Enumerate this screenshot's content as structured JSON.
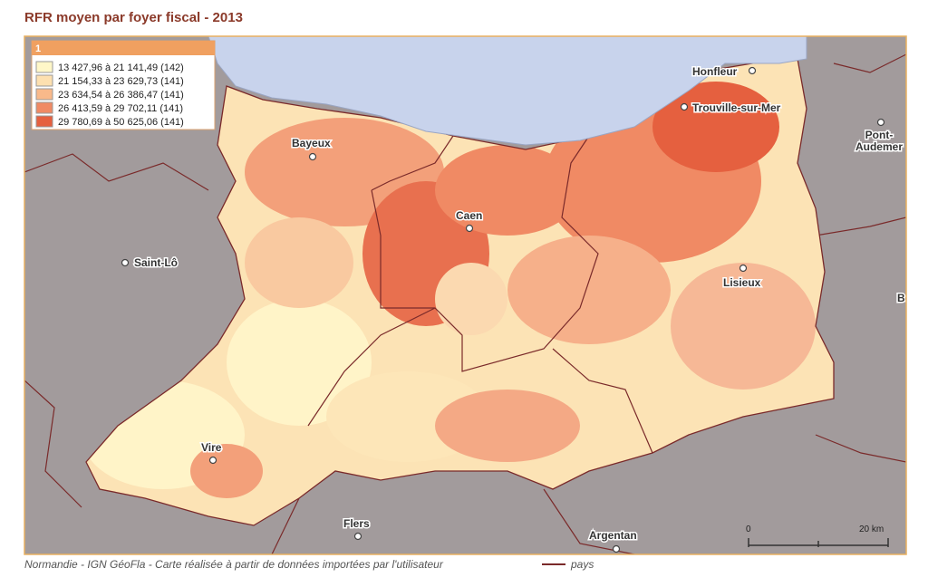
{
  "header": {
    "title": "RFR moyen par foyer fiscal - 2013"
  },
  "legend": {
    "title": "1",
    "items": [
      "13 427,96 à 21 141,49 (142)",
      "21 154,33 à 23 629,73 (141)",
      "23 634,54 à 26 386,47 (141)",
      "26 413,59 à 29 702,11 (141)",
      "29 780,69 à 50 625,06 (141)"
    ]
  },
  "cities": [
    "Honfleur",
    "Trouville-sur-Mer",
    "Pont-\nAudemer",
    "Bayeux",
    "Caen",
    "Saint-Lô",
    "Lisieux",
    "Vire",
    "Flers",
    "Argentan",
    "Be"
  ],
  "scale": {
    "start": "0",
    "end": "20 km"
  },
  "footer": {
    "source": "Normandie - IGN GéoFla - Carte réalisée à partir de données importées par l'utilisateur",
    "boundary": "pays"
  }
}
